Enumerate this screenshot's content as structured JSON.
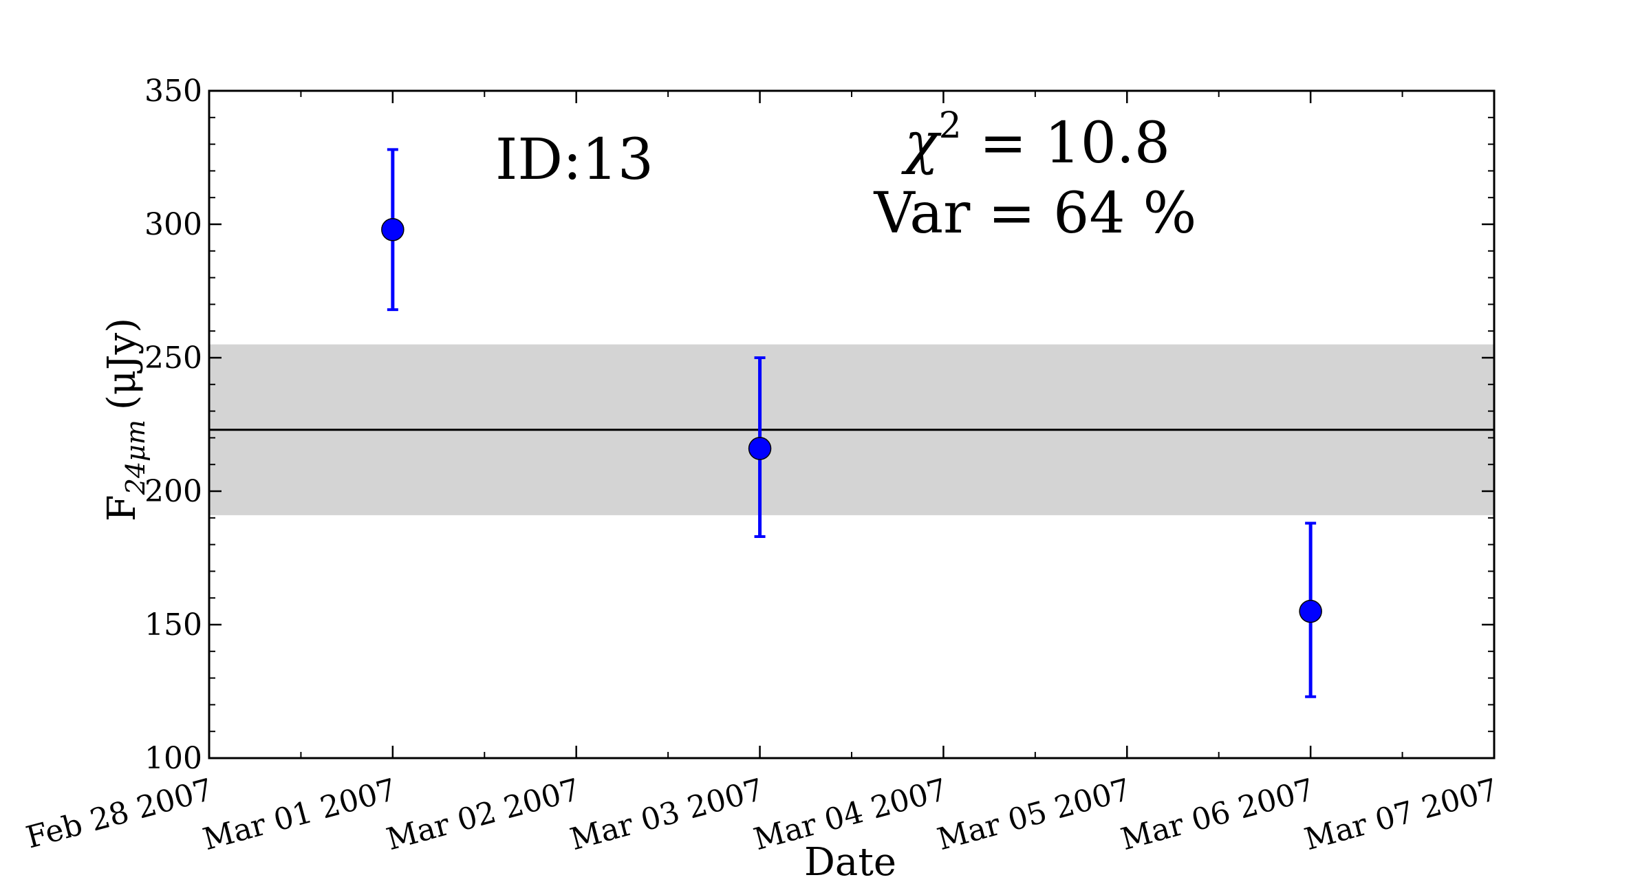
{
  "chart_data": {
    "type": "scatter",
    "xlabel": "Date",
    "ylabel": "F",
    "ylabel_sub": "24μm",
    "ylabel_unit": "(μJy)",
    "x_ticks": [
      "Feb 28 2007",
      "Mar 01 2007",
      "Mar 02 2007",
      "Mar 03 2007",
      "Mar 04 2007",
      "Mar 05 2007",
      "Mar 06 2007",
      "Mar 07 2007"
    ],
    "xlim": [
      "2007-02-28",
      "2007-03-07"
    ],
    "ylim": [
      100,
      350
    ],
    "y_ticks": [
      "100",
      "150",
      "200",
      "250",
      "300",
      "350"
    ],
    "points": [
      {
        "x": "2007-03-01",
        "y": 298,
        "err_low": 268,
        "err_high": 328
      },
      {
        "x": "2007-03-03",
        "y": 216,
        "err_low": 183,
        "err_high": 250
      },
      {
        "x": "2007-03-06",
        "y": 155,
        "err_low": 123,
        "err_high": 188
      }
    ],
    "mean_line": 223,
    "band": [
      191,
      255
    ],
    "annotations": {
      "id": "ID:13",
      "chi_symbol": "χ",
      "chi_exp": "2",
      "chi_rest": " = 10.8",
      "var": "Var = 64 %"
    },
    "colors": {
      "points": "#0000ff",
      "band": "#d4d4d4",
      "line": "#000000"
    },
    "grid": false
  }
}
